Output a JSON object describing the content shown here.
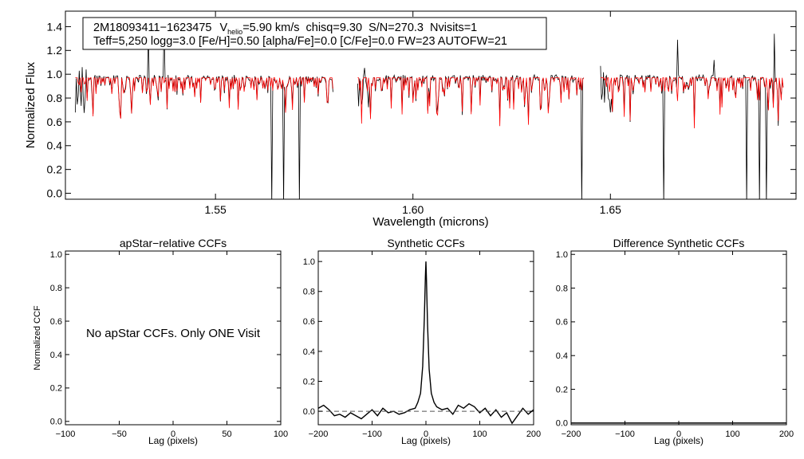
{
  "chart_data": [
    {
      "type": "line",
      "title": "",
      "xlabel": "Wavelength (microns)",
      "ylabel": "Normalized Flux",
      "xlim": [
        1.512,
        1.697
      ],
      "ylim": [
        -0.05,
        1.53
      ],
      "xticks": [
        1.55,
        1.6,
        1.65
      ],
      "xtick_labels": [
        "1.55",
        "1.60",
        "1.65"
      ],
      "yticks": [
        0.0,
        0.2,
        0.4,
        0.6,
        0.8,
        1.0,
        1.2,
        1.4
      ],
      "ytick_labels": [
        "0.0",
        "0.2",
        "0.4",
        "0.6",
        "0.8",
        "1.0",
        "1.2",
        "1.4"
      ],
      "annotation": {
        "star_id": "2M18093411−1623475",
        "v_prefix": "V",
        "v_subscript": "helio",
        "v_value": "=5.90 km/s",
        "chisq": "chisq=9.30",
        "snr": "S/N=270.3",
        "nvisits": "Nvisits=1",
        "params": "Teff=5,250 logg=3.0 [Fe/H]=0.50 [alpha/Fe]=0.0 [C/Fe]=0.0 FW=23 AUTOFW=21"
      },
      "chips": [
        [
          1.5145,
          1.58
        ],
        [
          1.586,
          1.6435
        ],
        [
          1.6475,
          1.694
        ]
      ],
      "series": [
        {
          "name": "Observed spectrum",
          "color": "#000000",
          "continuum": 0.97,
          "spikes": [
            [
              1.533,
              1.42
            ],
            [
              1.537,
              1.42
            ],
            [
              1.667,
              1.29
            ],
            [
              1.6762,
              1.12
            ],
            [
              1.6915,
              1.34
            ]
          ],
          "gaps": [
            [
              1.5643,
              0.0
            ],
            [
              1.5672,
              0.0
            ],
            [
              1.5712,
              0.0
            ],
            [
              1.6427,
              0.0
            ],
            [
              1.6635,
              0.0
            ],
            [
              1.6845,
              0.0
            ],
            [
              1.6878,
              0.0
            ],
            [
              1.6895,
              0.0
            ]
          ]
        },
        {
          "name": "Synthetic model",
          "color": "#ff0000",
          "continuum": 0.97
        }
      ]
    },
    {
      "type": "line",
      "title": "apStar−relative CCFs",
      "xlabel": "Lag (pixels)",
      "ylabel": "Normalized CCF",
      "xlim": [
        -100,
        100
      ],
      "ylim": [
        -0.02,
        1.02
      ],
      "xticks": [
        -100,
        -50,
        0,
        50,
        100
      ],
      "xtick_labels": [
        "−100",
        "−50",
        "0",
        "50",
        "100"
      ],
      "yticks": [
        0.0,
        0.2,
        0.4,
        0.6,
        0.8,
        1.0
      ],
      "ytick_labels": [
        "0.0",
        "0.2",
        "0.4",
        "0.6",
        "0.8",
        "1.0"
      ],
      "message": "No apStar CCFs.  Only ONE Visit",
      "series": []
    },
    {
      "type": "line",
      "title": "Synthetic CCFs",
      "xlabel": "Lag (pixels)",
      "ylabel": "",
      "xlim": [
        -200,
        200
      ],
      "ylim": [
        -0.09,
        1.07
      ],
      "xticks": [
        -200,
        -100,
        0,
        100,
        200
      ],
      "xtick_labels": [
        "−200",
        "−100",
        "0",
        "100",
        "200"
      ],
      "yticks": [
        0.0,
        0.2,
        0.4,
        0.6,
        0.8,
        1.0
      ],
      "ytick_labels": [
        "0.0",
        "0.2",
        "0.4",
        "0.6",
        "0.8",
        "1.0"
      ],
      "series": [
        {
          "name": "CCF",
          "color": "#000000",
          "x": [
            -200,
            -190,
            -180,
            -170,
            -160,
            -150,
            -140,
            -130,
            -120,
            -110,
            -100,
            -90,
            -80,
            -70,
            -60,
            -50,
            -40,
            -30,
            -20,
            -15,
            -10,
            -6,
            -3,
            -1,
            0,
            1,
            3,
            6,
            10,
            15,
            20,
            30,
            40,
            50,
            60,
            70,
            80,
            90,
            100,
            110,
            120,
            130,
            140,
            150,
            160,
            170,
            180,
            190,
            200
          ],
          "y": [
            0.02,
            0.04,
            0.01,
            -0.03,
            -0.02,
            -0.04,
            -0.01,
            -0.03,
            -0.05,
            -0.02,
            0.01,
            -0.03,
            0.02,
            -0.01,
            0.0,
            -0.02,
            -0.01,
            0.01,
            0.02,
            0.06,
            0.12,
            0.3,
            0.62,
            0.9,
            1.0,
            0.88,
            0.58,
            0.28,
            0.12,
            0.06,
            0.03,
            0.01,
            0.02,
            -0.02,
            0.04,
            0.02,
            0.05,
            0.03,
            -0.01,
            0.02,
            -0.03,
            0.01,
            -0.04,
            -0.01,
            -0.08,
            -0.03,
            0.02,
            -0.02,
            0.01
          ]
        },
        {
          "name": "zero",
          "color": "#555555",
          "dashed": true,
          "x": [
            -200,
            200
          ],
          "y": [
            0,
            0
          ]
        }
      ]
    },
    {
      "type": "line",
      "title": "Difference Synthetic CCFs",
      "xlabel": "Lag (pixels)",
      "ylabel": "",
      "xlim": [
        -200,
        200
      ],
      "ylim": [
        -0.01,
        1.02
      ],
      "xticks": [
        -200,
        -100,
        0,
        100,
        200
      ],
      "xtick_labels": [
        "−200",
        "−100",
        "0",
        "100",
        "200"
      ],
      "yticks": [
        0.0,
        0.2,
        0.4,
        0.6,
        0.8,
        1.0
      ],
      "ytick_labels": [
        "0.0",
        "0.2",
        "0.4",
        "0.6",
        "0.8",
        "1.0"
      ],
      "series": [
        {
          "name": "difference",
          "color": "#000000",
          "x": [
            -200,
            200
          ],
          "y": [
            0,
            0
          ]
        }
      ]
    }
  ]
}
